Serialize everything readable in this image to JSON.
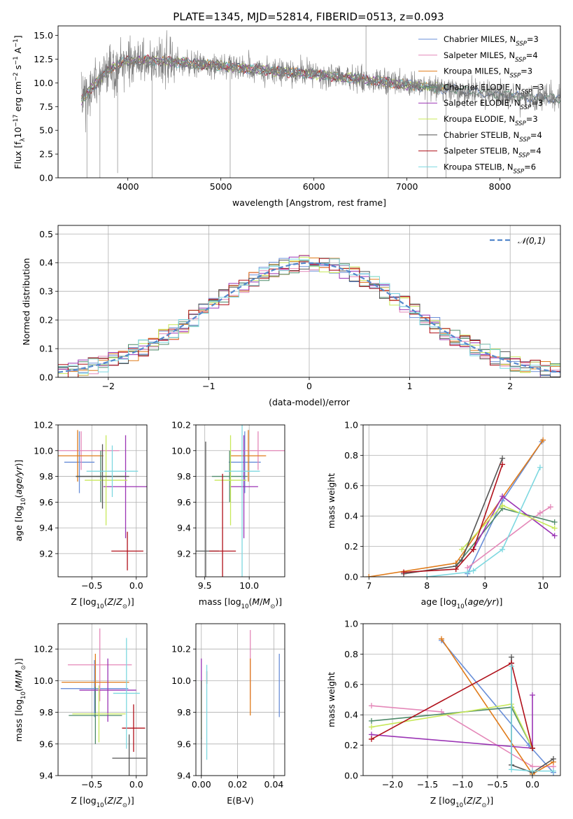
{
  "figure_title": "PLATE=1345, MJD=52814, FIBERID=0513, z=0.093",
  "colors": {
    "Chabrier MILES": "#6a8fd8",
    "Salpeter MILES": "#e487b8",
    "Kroupa MILES": "#e07b1a",
    "Chabrier ELODIE": "#4f8a6a",
    "Salpeter ELODIE": "#9b35b5",
    "Kroupa ELODIE": "#c8e85a",
    "Chabrier STELIB": "#555555",
    "Salpeter STELIB": "#b0101a",
    "Kroupa STELIB": "#7dd8e0"
  },
  "chart_data": [
    {
      "id": "spectrum",
      "type": "line",
      "title": "PLATE=1345, MJD=52814, FIBERID=0513, z=0.093",
      "xlabel": "wavelength [Angstrom, rest frame]",
      "ylabel": "Flux [f_λ 10^-17 erg cm^-2 s^-1 A^-1]",
      "xlim": [
        3250,
        8650
      ],
      "ylim": [
        0,
        16
      ],
      "xticks": [
        4000,
        5000,
        6000,
        7000,
        8000
      ],
      "yticks": [
        0.0,
        2.5,
        5.0,
        7.5,
        10.0,
        12.5,
        15.0
      ],
      "grid": false,
      "legend_position": "top-right",
      "legend": [
        {
          "name": "Chabrier MILES",
          "nssp": "3"
        },
        {
          "name": "Salpeter MILES",
          "nssp": "4"
        },
        {
          "name": "Kroupa MILES",
          "nssp": "3"
        },
        {
          "name": "Chabrier ELODIE",
          "nssp": "3"
        },
        {
          "name": "Salpeter ELODIE",
          "nssp": "3"
        },
        {
          "name": "Kroupa ELODIE",
          "nssp": "3"
        },
        {
          "name": "Chabrier STELIB",
          "nssp": "4"
        },
        {
          "name": "Salpeter STELIB",
          "nssp": "4"
        },
        {
          "name": "Kroupa STELIB",
          "nssp": "6"
        }
      ],
      "data_trend": {
        "wavelength": [
          3500,
          3600,
          3800,
          4000,
          4200,
          4500,
          5000,
          5500,
          6000,
          6500,
          7000,
          7400,
          7800,
          8200,
          8650
        ],
        "flux": [
          8.2,
          9.3,
          11.5,
          12.3,
          12.4,
          12.2,
          11.8,
          11.3,
          10.9,
          10.4,
          9.8,
          9.4,
          9.0,
          8.6,
          8.3
        ]
      }
    },
    {
      "id": "residuals",
      "type": "histogram",
      "xlabel": "(data-model)/error",
      "ylabel": "Normed distribution",
      "xlim": [
        -2.5,
        2.5
      ],
      "ylim": [
        0,
        0.53
      ],
      "xticks": [
        -2,
        -1,
        0,
        1,
        2
      ],
      "yticks": [
        0.0,
        0.1,
        0.2,
        0.3,
        0.4,
        0.5
      ],
      "grid": true,
      "legend_position": "top-right",
      "reference_curve": {
        "name": "𝒩(0,1)",
        "mean": 0,
        "sigma": 1
      },
      "bin_width": 0.1
    },
    {
      "id": "age_vs_Z",
      "type": "errorbar",
      "xlabel": "Z [log10(Z/Z⊙)]",
      "ylabel": "age [log10(age/yr)]",
      "xlim": [
        -0.88,
        0.12
      ],
      "ylim": [
        9.02,
        10.2
      ],
      "xticks": [
        -0.5,
        0.0
      ],
      "yticks": [
        9.2,
        9.4,
        9.6,
        9.8,
        10.0,
        10.2
      ],
      "points": [
        {
          "model": "Chabrier MILES",
          "x": -0.64,
          "xerr": 0.17,
          "y": 9.91,
          "yerr": 0.24
        },
        {
          "model": "Salpeter MILES",
          "x": -0.62,
          "xerr": 0.43,
          "y": 10.0,
          "yerr": 0.15
        },
        {
          "model": "Kroupa MILES",
          "x": -0.66,
          "xerr": 0.29,
          "y": 9.96,
          "yerr": 0.2
        },
        {
          "model": "Chabrier ELODIE",
          "x": -0.4,
          "xerr": 0.28,
          "y": 9.8,
          "yerr": 0.2
        },
        {
          "model": "Salpeter ELODIE",
          "x": -0.12,
          "xerr": 0.25,
          "y": 9.72,
          "yerr": 0.4
        },
        {
          "model": "Kroupa ELODIE",
          "x": -0.34,
          "xerr": 0.24,
          "y": 9.77,
          "yerr": 0.35
        },
        {
          "model": "Chabrier STELIB",
          "x": -0.38,
          "xerr": 0.3,
          "y": 9.8,
          "yerr": 0.25
        },
        {
          "model": "Salpeter STELIB",
          "x": -0.1,
          "xerr": 0.18,
          "y": 9.22,
          "yerr": 0.15
        },
        {
          "model": "Kroupa STELIB",
          "x": -0.27,
          "xerr": 0.29,
          "y": 9.84,
          "yerr": 0.2
        }
      ]
    },
    {
      "id": "age_vs_mass",
      "type": "errorbar",
      "xlabel": "mass [log10(M/M⊙)]",
      "ylabel": "",
      "xlim": [
        9.4,
        10.4
      ],
      "ylim": [
        9.02,
        10.2
      ],
      "xticks": [
        9.5,
        10.0
      ],
      "yticks": [
        9.2,
        9.4,
        9.6,
        9.8,
        10.0,
        10.2
      ],
      "points": [
        {
          "model": "Chabrier MILES",
          "x": 9.95,
          "xerr": 0.18,
          "y": 9.91,
          "yerr": 0.24
        },
        {
          "model": "Salpeter MILES",
          "x": 10.1,
          "xerr": 0.3,
          "y": 10.0,
          "yerr": 0.15
        },
        {
          "model": "Kroupa MILES",
          "x": 9.99,
          "xerr": 0.2,
          "y": 9.96,
          "yerr": 0.2
        },
        {
          "model": "Chabrier ELODIE",
          "x": 9.78,
          "xerr": 0.2,
          "y": 9.8,
          "yerr": 0.2
        },
        {
          "model": "Salpeter ELODIE",
          "x": 9.94,
          "xerr": 0.16,
          "y": 9.72,
          "yerr": 0.4
        },
        {
          "model": "Kroupa ELODIE",
          "x": 9.79,
          "xerr": 0.18,
          "y": 9.77,
          "yerr": 0.35
        },
        {
          "model": "Chabrier STELIB",
          "x": 9.51,
          "xerr": 0.15,
          "y": 9.22,
          "yerr": 0.85
        },
        {
          "model": "Salpeter STELIB",
          "x": 9.7,
          "xerr": 0.15,
          "y": 9.22,
          "yerr": 0.6
        },
        {
          "model": "Kroupa STELIB",
          "x": 9.92,
          "xerr": 0.2,
          "y": 9.84,
          "yerr": 0.9
        }
      ]
    },
    {
      "id": "weight_vs_age",
      "type": "line",
      "xlabel": "age [log10(age/yr)]",
      "ylabel": "mass weight",
      "xlim": [
        6.9,
        10.3
      ],
      "ylim": [
        0,
        1.0
      ],
      "xticks": [
        7,
        8,
        9,
        10
      ],
      "yticks": [
        0.0,
        0.2,
        0.4,
        0.6,
        0.8,
        1.0
      ],
      "grid": true,
      "series": [
        {
          "model": "Chabrier MILES",
          "x": [
            8.7,
            9.3,
            9.98
          ],
          "y": [
            0.02,
            0.5,
            0.89
          ]
        },
        {
          "model": "Salpeter MILES",
          "x": [
            8.7,
            9.95,
            10.13
          ],
          "y": [
            0.06,
            0.42,
            0.46
          ]
        },
        {
          "model": "Kroupa MILES",
          "x": [
            7.0,
            8.5,
            10.0
          ],
          "y": [
            0.0,
            0.09,
            0.9
          ]
        },
        {
          "model": "Chabrier ELODIE",
          "x": [
            8.5,
            9.3,
            10.2
          ],
          "y": [
            0.07,
            0.45,
            0.36
          ]
        },
        {
          "model": "Salpeter ELODIE",
          "x": [
            8.8,
            9.3,
            10.2
          ],
          "y": [
            0.18,
            0.53,
            0.27
          ]
        },
        {
          "model": "Kroupa ELODIE",
          "x": [
            8.6,
            9.3,
            10.2
          ],
          "y": [
            0.18,
            0.47,
            0.32
          ]
        },
        {
          "model": "Chabrier STELIB",
          "x": [
            7.6,
            8.5,
            8.6,
            9.3
          ],
          "y": [
            0.02,
            0.07,
            0.11,
            0.78
          ]
        },
        {
          "model": "Salpeter STELIB",
          "x": [
            7.6,
            8.5,
            8.8,
            9.3
          ],
          "y": [
            0.03,
            0.05,
            0.18,
            0.74
          ]
        },
        {
          "model": "Kroupa STELIB",
          "x": [
            8.0,
            8.7,
            8.8,
            9.3,
            9.95
          ],
          "y": [
            0.0,
            0.03,
            0.04,
            0.18,
            0.72
          ]
        }
      ]
    },
    {
      "id": "mass_vs_Z",
      "type": "errorbar",
      "xlabel": "Z [log10(Z/Z⊙)]",
      "ylabel": "mass [log10(M/M⊙)]",
      "xlim": [
        -0.88,
        0.12
      ],
      "ylim": [
        9.4,
        10.36
      ],
      "xticks": [
        -0.5,
        0.0
      ],
      "yticks": [
        9.4,
        9.6,
        9.8,
        10.0,
        10.2
      ],
      "points": [
        {
          "model": "Chabrier MILES",
          "x": -0.47,
          "xerr": 0.38,
          "y": 9.95,
          "yerr": 0.18
        },
        {
          "model": "Salpeter MILES",
          "x": -0.41,
          "xerr": 0.36,
          "y": 10.1,
          "yerr": 0.23
        },
        {
          "model": "Kroupa MILES",
          "x": -0.46,
          "xerr": 0.38,
          "y": 9.99,
          "yerr": 0.18
        },
        {
          "model": "Chabrier ELODIE",
          "x": -0.46,
          "xerr": 0.3,
          "y": 9.78,
          "yerr": 0.18
        },
        {
          "model": "Salpeter ELODIE",
          "x": -0.32,
          "xerr": 0.32,
          "y": 9.94,
          "yerr": 0.2
        },
        {
          "model": "Kroupa ELODIE",
          "x": -0.42,
          "xerr": 0.3,
          "y": 9.79,
          "yerr": 0.18
        },
        {
          "model": "Chabrier STELIB",
          "x": -0.08,
          "xerr": 0.19,
          "y": 9.51,
          "yerr": 0.15
        },
        {
          "model": "Salpeter STELIB",
          "x": -0.03,
          "xerr": 0.13,
          "y": 9.7,
          "yerr": 0.15
        },
        {
          "model": "Kroupa STELIB",
          "x": -0.11,
          "xerr": 0.15,
          "y": 9.92,
          "yerr": 0.35
        }
      ]
    },
    {
      "id": "mass_vs_EBV",
      "type": "errorbar",
      "xlabel": "E(B-V)",
      "ylabel": "",
      "xlim": [
        -0.003,
        0.046
      ],
      "ylim": [
        9.4,
        10.36
      ],
      "xticks": [
        0.0,
        0.02,
        0.04
      ],
      "yticks": [
        9.4,
        9.6,
        9.8,
        10.0,
        10.2
      ],
      "points": [
        {
          "model": "Chabrier MILES",
          "x": 0.043,
          "y": 9.97,
          "yerr": 0.2
        },
        {
          "model": "Salpeter MILES",
          "x": 0.027,
          "y": 10.1,
          "yerr": 0.22
        },
        {
          "model": "Kroupa MILES",
          "x": 0.027,
          "y": 9.96,
          "yerr": 0.18
        },
        {
          "model": "Chabrier ELODIE",
          "x": 0.0,
          "y": 9.78,
          "yerr": 0.15
        },
        {
          "model": "Salpeter ELODIE",
          "x": 0.0,
          "y": 9.94,
          "yerr": 0.2
        },
        {
          "model": "Kroupa ELODIE",
          "x": 0.0,
          "y": 9.79,
          "yerr": 0.15
        },
        {
          "model": "Chabrier STELIB",
          "x": 0.0,
          "y": 9.7,
          "yerr": 0.3
        },
        {
          "model": "Salpeter STELIB",
          "x": 0.003,
          "y": 10.02,
          "yerr": 0.04
        },
        {
          "model": "Kroupa STELIB",
          "x": 0.003,
          "y": 9.8,
          "yerr": 0.3
        }
      ]
    },
    {
      "id": "weight_vs_Z",
      "type": "line",
      "xlabel": "Z [log10(Z/Z⊙)]",
      "ylabel": "mass weight",
      "xlim": [
        -2.42,
        0.4
      ],
      "ylim": [
        0,
        1.0
      ],
      "xticks": [
        -2.0,
        -1.5,
        -1.0,
        -0.5,
        0.0
      ],
      "yticks": [
        0.0,
        0.2,
        0.4,
        0.6,
        0.8,
        1.0
      ],
      "grid": true,
      "series": [
        {
          "model": "Chabrier MILES",
          "x": [
            -1.3,
            -0.05,
            0.3
          ],
          "y": [
            0.89,
            0.2,
            0.02
          ]
        },
        {
          "model": "Salpeter MILES",
          "x": [
            -2.3,
            -1.3,
            0.0,
            0.3
          ],
          "y": [
            0.46,
            0.42,
            0.06,
            0.06
          ]
        },
        {
          "model": "Kroupa MILES",
          "x": [
            -1.3,
            0.0,
            0.3
          ],
          "y": [
            0.9,
            0.01,
            0.09
          ]
        },
        {
          "model": "Chabrier ELODIE",
          "x": [
            -2.3,
            -0.3,
            0.0
          ],
          "y": [
            0.36,
            0.45,
            0.18
          ]
        },
        {
          "model": "Salpeter ELODIE",
          "x": [
            -2.3,
            0.0,
            0.0
          ],
          "y": [
            0.27,
            0.18,
            0.53
          ]
        },
        {
          "model": "Kroupa ELODIE",
          "x": [
            -2.3,
            -0.3,
            0.0
          ],
          "y": [
            0.32,
            0.47,
            0.18
          ]
        },
        {
          "model": "Chabrier STELIB",
          "x": [
            -0.3,
            -0.3,
            0.0,
            0.3
          ],
          "y": [
            0.78,
            0.07,
            0.02,
            0.11
          ]
        },
        {
          "model": "Salpeter STELIB",
          "x": [
            -2.3,
            -0.3,
            0.0,
            -0.3
          ],
          "y": [
            0.24,
            0.74,
            0.18,
            0.74
          ]
        },
        {
          "model": "Kroupa STELIB",
          "x": [
            -0.3,
            -0.3,
            0.0,
            0.3
          ],
          "y": [
            0.72,
            0.04,
            0.03,
            0.03
          ]
        }
      ]
    }
  ]
}
